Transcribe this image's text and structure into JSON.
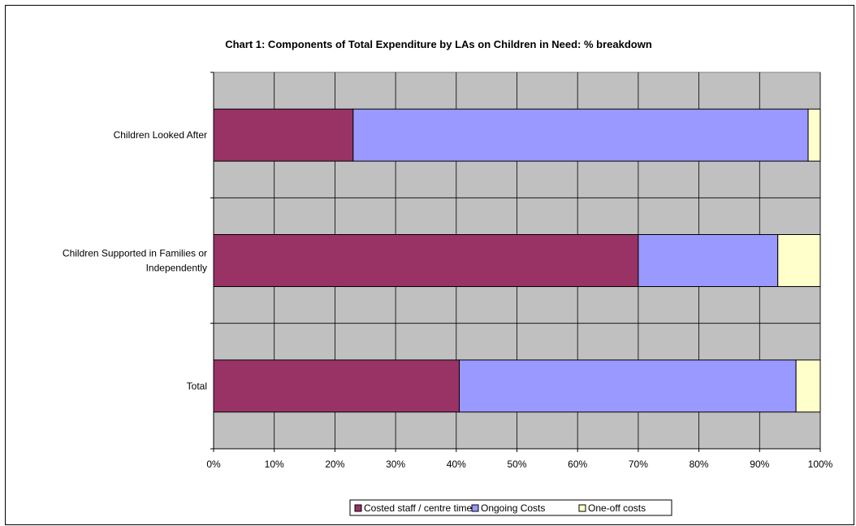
{
  "chart_data": {
    "type": "bar",
    "orientation": "horizontal",
    "stacked": true,
    "title": "Chart 1: Components of Total Expenditure by LAs on Children in Need: % breakdown",
    "categories": [
      [
        "Children Looked After"
      ],
      [
        "Children Supported in Families or",
        "Independently"
      ],
      [
        "Total"
      ]
    ],
    "series": [
      {
        "name": "Costed staff / centre time",
        "color": "#993366",
        "values": [
          23,
          70,
          40.5
        ]
      },
      {
        "name": "Ongoing Costs",
        "color": "#9999ff",
        "values": [
          75,
          23,
          55.5
        ]
      },
      {
        "name": "One-off costs",
        "color": "#ffffcc",
        "values": [
          2,
          7,
          4
        ]
      }
    ],
    "x_ticks": [
      "0%",
      "10%",
      "20%",
      "30%",
      "40%",
      "50%",
      "60%",
      "70%",
      "80%",
      "90%",
      "100%"
    ],
    "xlim": [
      0,
      100
    ],
    "plot_background": "#c0c0c0",
    "grid": true,
    "legend_position": "bottom"
  }
}
